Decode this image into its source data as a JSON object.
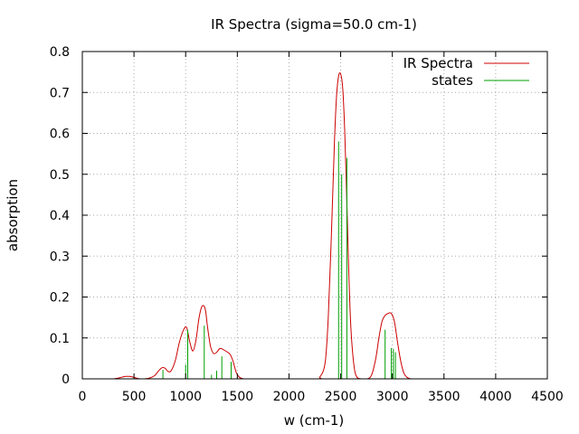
{
  "chart_data": {
    "type": "line",
    "title": "IR Spectra (sigma=50.0 cm-1)",
    "xlabel": "w (cm-1)",
    "ylabel": "absorption",
    "xlim": [
      0,
      4500
    ],
    "ylim": [
      0,
      0.8
    ],
    "xticks": [
      0,
      500,
      1000,
      1500,
      2000,
      2500,
      3000,
      3500,
      4000,
      4500
    ],
    "yticks": [
      0,
      0.1,
      0.2,
      0.3,
      0.4,
      0.5,
      0.6,
      0.7,
      0.8
    ],
    "grid": true,
    "legend_position": "top-right",
    "series": [
      {
        "name": "IR Spectra",
        "kind": "line",
        "color": "#cc0000",
        "x": [
          300,
          350,
          380,
          420,
          450,
          480,
          520,
          560,
          600,
          650,
          700,
          740,
          770,
          800,
          830,
          860,
          900,
          940,
          980,
          1010,
          1040,
          1070,
          1100,
          1130,
          1160,
          1190,
          1210,
          1240,
          1270,
          1300,
          1330,
          1360,
          1400,
          1430,
          1460,
          1490,
          1520,
          1560,
          1600,
          2250,
          2300,
          2350,
          2380,
          2410,
          2440,
          2460,
          2480,
          2500,
          2520,
          2540,
          2560,
          2580,
          2600,
          2630,
          2660,
          2700,
          2760,
          2800,
          2840,
          2870,
          2900,
          2930,
          2960,
          2990,
          3020,
          3050,
          3080,
          3110,
          3140,
          3180,
          3250
        ],
        "y": [
          0,
          0.002,
          0.004,
          0.006,
          0.006,
          0.005,
          0.002,
          0,
          0,
          0.002,
          0.008,
          0.02,
          0.027,
          0.026,
          0.018,
          0.02,
          0.045,
          0.09,
          0.12,
          0.125,
          0.09,
          0.068,
          0.095,
          0.15,
          0.178,
          0.17,
          0.13,
          0.08,
          0.062,
          0.065,
          0.074,
          0.072,
          0.066,
          0.06,
          0.042,
          0.015,
          0.004,
          0,
          0,
          0,
          0.005,
          0.04,
          0.15,
          0.35,
          0.58,
          0.69,
          0.74,
          0.745,
          0.71,
          0.6,
          0.43,
          0.25,
          0.12,
          0.03,
          0.003,
          0,
          0,
          0.01,
          0.05,
          0.1,
          0.14,
          0.155,
          0.16,
          0.16,
          0.14,
          0.09,
          0.045,
          0.015,
          0.004,
          0,
          0
        ]
      },
      {
        "name": "states",
        "kind": "impulse",
        "color": "#00a000",
        "x": [
          780,
          1000,
          1020,
          1180,
          1250,
          1300,
          1350,
          1440,
          2480,
          2510,
          2560,
          2930,
          2990,
          3010,
          3030
        ],
        "y": [
          0.022,
          0.035,
          0.12,
          0.13,
          0.01,
          0.02,
          0.055,
          0.042,
          0.58,
          0.5,
          0.54,
          0.12,
          0.075,
          0.073,
          0.065
        ]
      }
    ]
  }
}
